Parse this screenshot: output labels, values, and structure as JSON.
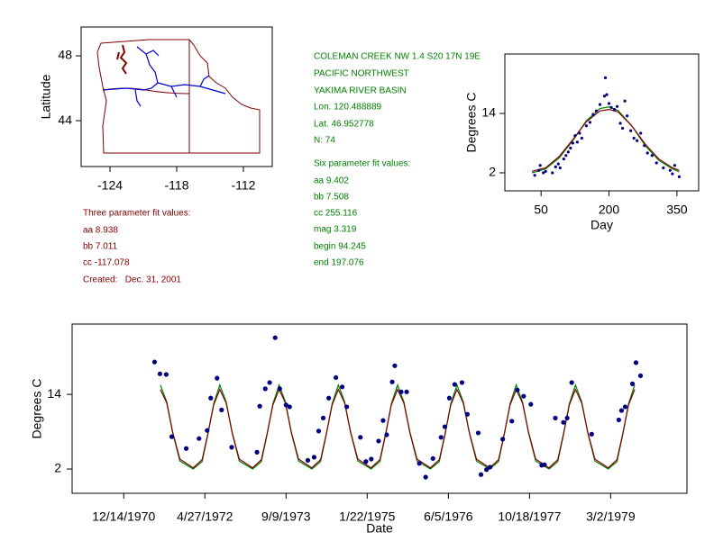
{
  "chart_data": [
    {
      "type": "map",
      "ylabel": "Latitude",
      "xlim": [
        -126.6,
        -109.4
      ],
      "ylim": [
        41.17,
        49.78
      ],
      "xticks": [
        -124,
        -118,
        -112
      ],
      "yticks": [
        44,
        48
      ]
    },
    {
      "type": "line",
      "xlabel": "Day",
      "ylabel": "Degrees C",
      "xlim": [
        -30,
        398
      ],
      "ylim": [
        -1.64,
        26
      ],
      "xticks": [
        50,
        200,
        350
      ],
      "yticks": [
        2,
        14
      ],
      "series": [
        {
          "mode": "line",
          "color": "#008000",
          "x": [
            30,
            60,
            90,
            120,
            150,
            180,
            200,
            220,
            250,
            280,
            310,
            340,
            355
          ],
          "values": [
            2.0,
            2.8,
            5.0,
            8.5,
            12.5,
            15.0,
            15.3,
            14.6,
            11.5,
            7.5,
            4.5,
            2.8,
            2.2
          ]
        },
        {
          "mode": "line",
          "color": "#800000",
          "x": [
            30,
            60,
            90,
            120,
            150,
            180,
            200,
            220,
            250,
            280,
            310,
            340,
            355
          ],
          "values": [
            2.3,
            3.0,
            5.3,
            8.7,
            12.3,
            14.5,
            14.8,
            14.3,
            11.5,
            7.8,
            4.8,
            3.0,
            2.5
          ]
        },
        {
          "mode": "markers",
          "color": "#000080",
          "x": [
            36,
            45,
            48,
            55,
            60,
            75,
            82,
            88,
            92,
            100,
            105,
            110,
            115,
            120,
            125,
            130,
            135,
            140,
            150,
            158,
            165,
            172,
            180,
            190,
            192,
            195,
            200,
            205,
            212,
            218,
            225,
            230,
            235,
            240,
            248,
            255,
            262,
            270,
            278,
            285,
            295,
            305,
            320,
            335,
            340,
            345,
            355
          ],
          "values": [
            1.5,
            2.5,
            3.5,
            2,
            2.3,
            2.0,
            3.2,
            3.8,
            3.0,
            4.8,
            5.5,
            6.2,
            7.0,
            8.0,
            9.5,
            8.2,
            10.0,
            9.0,
            11.5,
            12.2,
            13.8,
            14.5,
            15.8,
            17.5,
            21.2,
            17.8,
            16.0,
            15.2,
            14.8,
            15.4,
            12.0,
            11.0,
            16.5,
            13.5,
            10.5,
            9.0,
            8.5,
            10.0,
            7.5,
            6.0,
            5.5,
            4.0,
            3.0,
            2.5,
            1.8,
            3.5,
            1.2
          ]
        }
      ]
    },
    {
      "type": "line",
      "xlabel": "Date",
      "ylabel": "Degrees C",
      "xlim": [
        "1970-01-30",
        "1980-06-14"
      ],
      "ylim": [
        -1.9,
        25.3
      ],
      "xticks": [
        {
          "value": "1970-12-14",
          "label": "12/14/1970"
        },
        {
          "value": "1972-04-27",
          "label": "4/27/1972"
        },
        {
          "value": "1973-09-09",
          "label": "9/9/1973"
        },
        {
          "value": "1975-01-22",
          "label": "1/22/1975"
        },
        {
          "value": "1976-06-05",
          "label": "6/5/1976"
        },
        {
          "value": "1977-10-18",
          "label": "10/18/1977"
        },
        {
          "value": "1979-03-02",
          "label": "3/2/1979"
        }
      ],
      "yticks": [
        2,
        14
      ],
      "series": [
        {
          "mode": "line",
          "color": "#008000",
          "x": [
            "1971-07-28",
            "1971-09-05",
            "1971-10-12",
            "1971-11-25",
            "1972-02-15",
            "1972-04-10",
            "1972-05-15",
            "1972-06-20",
            "1972-07-28",
            "1972-09-05",
            "1972-10-12",
            "1972-11-25",
            "1973-02-15",
            "1973-04-10",
            "1973-05-15",
            "1973-06-20",
            "1973-07-28",
            "1973-09-05",
            "1973-10-12",
            "1973-11-25",
            "1974-02-15",
            "1974-04-10",
            "1974-05-15",
            "1974-06-20",
            "1974-07-28",
            "1974-09-05",
            "1974-10-12",
            "1974-11-25",
            "1975-02-15",
            "1975-04-10",
            "1975-05-15",
            "1975-06-20",
            "1975-07-28",
            "1975-09-05",
            "1975-10-12",
            "1975-11-25",
            "1976-02-15",
            "1976-04-10",
            "1976-05-15",
            "1976-06-20",
            "1976-07-28",
            "1976-09-05",
            "1976-10-12",
            "1976-11-25",
            "1977-02-15",
            "1977-04-10",
            "1977-05-15",
            "1977-06-20",
            "1977-07-28",
            "1977-09-05",
            "1977-10-12",
            "1977-11-25",
            "1978-02-15",
            "1978-04-10",
            "1978-05-15",
            "1978-06-20",
            "1978-07-28",
            "1978-09-05",
            "1978-10-12",
            "1978-11-25",
            "1979-02-15",
            "1979-04-10",
            "1979-05-15",
            "1979-06-20",
            "1979-07-28"
          ],
          "values": [
            15.5,
            12.8,
            7.8,
            3.3,
            2.0,
            3.2,
            7.5,
            12.5,
            15.5,
            12.8,
            7.8,
            3.3,
            2.0,
            3.2,
            7.5,
            12.5,
            15.5,
            12.8,
            7.8,
            3.3,
            2.0,
            3.2,
            7.5,
            12.5,
            15.5,
            12.8,
            7.8,
            3.3,
            2.0,
            3.2,
            7.5,
            12.5,
            15.5,
            12.8,
            7.8,
            3.3,
            2.0,
            3.2,
            7.5,
            12.5,
            15.5,
            12.8,
            7.8,
            3.3,
            2.0,
            3.2,
            7.5,
            12.5,
            15.5,
            12.8,
            7.8,
            3.3,
            2.0,
            3.2,
            7.5,
            12.5,
            15.5,
            12.8,
            7.8,
            3.3,
            2.0,
            3.2,
            7.5,
            12.5,
            15.5
          ]
        },
        {
          "mode": "line",
          "color": "#800000",
          "x": [
            "1971-07-28",
            "1971-09-05",
            "1971-10-12",
            "1971-11-25",
            "1972-02-15",
            "1972-04-10",
            "1972-05-15",
            "1972-06-20",
            "1972-07-28",
            "1972-09-05",
            "1972-10-12",
            "1972-11-25",
            "1973-02-15",
            "1973-04-10",
            "1973-05-15",
            "1973-06-20",
            "1973-07-28",
            "1973-09-05",
            "1973-10-12",
            "1973-11-25",
            "1974-02-15",
            "1974-04-10",
            "1974-05-15",
            "1974-06-20",
            "1974-07-28",
            "1974-09-05",
            "1974-10-12",
            "1974-11-25",
            "1975-02-15",
            "1975-04-10",
            "1975-05-15",
            "1975-06-20",
            "1975-07-28",
            "1975-09-05",
            "1975-10-12",
            "1975-11-25",
            "1976-02-15",
            "1976-04-10",
            "1976-05-15",
            "1976-06-20",
            "1976-07-28",
            "1976-09-05",
            "1976-10-12",
            "1976-11-25",
            "1977-02-15",
            "1977-04-10",
            "1977-05-15",
            "1977-06-20",
            "1977-07-28",
            "1977-09-05",
            "1977-10-12",
            "1977-11-25",
            "1978-02-15",
            "1978-04-10",
            "1978-05-15",
            "1978-06-20",
            "1978-07-28",
            "1978-09-05",
            "1978-10-12",
            "1978-11-25",
            "1979-02-15",
            "1979-04-10",
            "1979-05-15",
            "1979-06-20",
            "1979-07-28"
          ],
          "values": [
            14.8,
            12.6,
            7.9,
            3.6,
            2.2,
            3.5,
            7.6,
            12.3,
            14.8,
            12.6,
            7.9,
            3.6,
            2.2,
            3.5,
            7.6,
            12.3,
            14.8,
            12.6,
            7.9,
            3.6,
            2.2,
            3.5,
            7.6,
            12.3,
            14.8,
            12.6,
            7.9,
            3.6,
            2.2,
            3.5,
            7.6,
            12.3,
            14.8,
            12.6,
            7.9,
            3.6,
            2.2,
            3.5,
            7.6,
            12.3,
            14.8,
            12.6,
            7.9,
            3.6,
            2.2,
            3.5,
            7.6,
            12.3,
            14.8,
            12.6,
            7.9,
            3.6,
            2.2,
            3.5,
            7.6,
            12.3,
            14.8,
            12.6,
            7.9,
            3.6,
            2.2,
            3.5,
            7.6,
            12.3,
            14.8
          ]
        },
        {
          "mode": "markers",
          "color": "#000080",
          "x": [
            "1971-06-22",
            "1971-07-25",
            "1971-09-02",
            "1971-10-06",
            "1972-01-03",
            "1972-03-22",
            "1972-05-11",
            "1972-06-02",
            "1972-07-11",
            "1972-08-08",
            "1972-10-09",
            "1973-03-14",
            "1973-03-31",
            "1973-05-04",
            "1973-05-31",
            "1973-07-04",
            "1973-08-01",
            "1973-09-09",
            "1973-10-01",
            "1974-01-21",
            "1974-03-01",
            "1974-03-29",
            "1974-04-26",
            "1974-05-30",
            "1974-07-13",
            "1974-08-21",
            "1974-09-18",
            "1974-12-11",
            "1975-01-14",
            "1975-02-16",
            "1975-04-02",
            "1975-04-30",
            "1975-05-22",
            "1975-06-25",
            "1975-07-11",
            "1975-08-19",
            "1975-09-22",
            "1975-12-09",
            "1976-01-17",
            "1976-03-02",
            "1976-04-21",
            "1976-05-14",
            "1976-06-11",
            "1976-07-14",
            "1976-08-28",
            "1976-09-30",
            "1976-12-06",
            "1976-12-23",
            "1977-01-26",
            "1977-02-17",
            "1977-05-06",
            "1977-07-01",
            "1977-08-04",
            "1977-09-12",
            "1977-10-26",
            "1978-01-01",
            "1978-01-18",
            "1978-03-26",
            "1978-05-15",
            "1978-06-07",
            "1978-07-05",
            "1978-11-05",
            "1979-04-21",
            "1979-05-08",
            "1979-05-30",
            "1979-07-14",
            "1979-08-05",
            "1979-09-02"
          ],
          "values": [
            19.2,
            17.3,
            17.2,
            7.2,
            5.3,
            6.9,
            8.2,
            13.4,
            16.6,
            11.5,
            5.5,
            4.7,
            12.1,
            14.9,
            15.9,
            23.1,
            14.9,
            12.3,
            12.0,
            3.4,
            3.9,
            8.1,
            10.2,
            13.4,
            16.7,
            15.2,
            12.0,
            7.1,
            3.2,
            3.6,
            6.5,
            9.8,
            7.5,
            16.0,
            18.6,
            14.4,
            14.4,
            2.9,
            0.7,
            3.7,
            7.1,
            8.8,
            13.4,
            15.6,
            15.9,
            10.8,
            7.8,
            1.1,
            1.9,
            2.3,
            6.8,
            9.7,
            14.7,
            13.7,
            12.4,
            2.6,
            2.7,
            10.2,
            9.5,
            10.2,
            15.9,
            7.6,
            9.9,
            11.4,
            12.0,
            15.7,
            19.1,
            17.0
          ]
        }
      ]
    }
  ],
  "notes": {
    "three_param": [
      "Three parameter fit values:",
      "aa 8.938",
      "bb 7.011",
      "cc -117.078",
      "Created:   Dec. 31, 2001"
    ],
    "station": [
      "COLEMAN CREEK NW 1.4 S20 17N 19E",
      "PACIFIC NORTHWEST",
      "YAKIMA RIVER BASIN",
      "Lon. 120.488889",
      "Lat. 46.952778",
      "N: 74"
    ],
    "six_param": [
      "Six parameter fit values:",
      "aa 9.402",
      "bb 7.508",
      "cc 255.116",
      "mag 3.319",
      "begin 94.245",
      "end 197.076"
    ]
  }
}
